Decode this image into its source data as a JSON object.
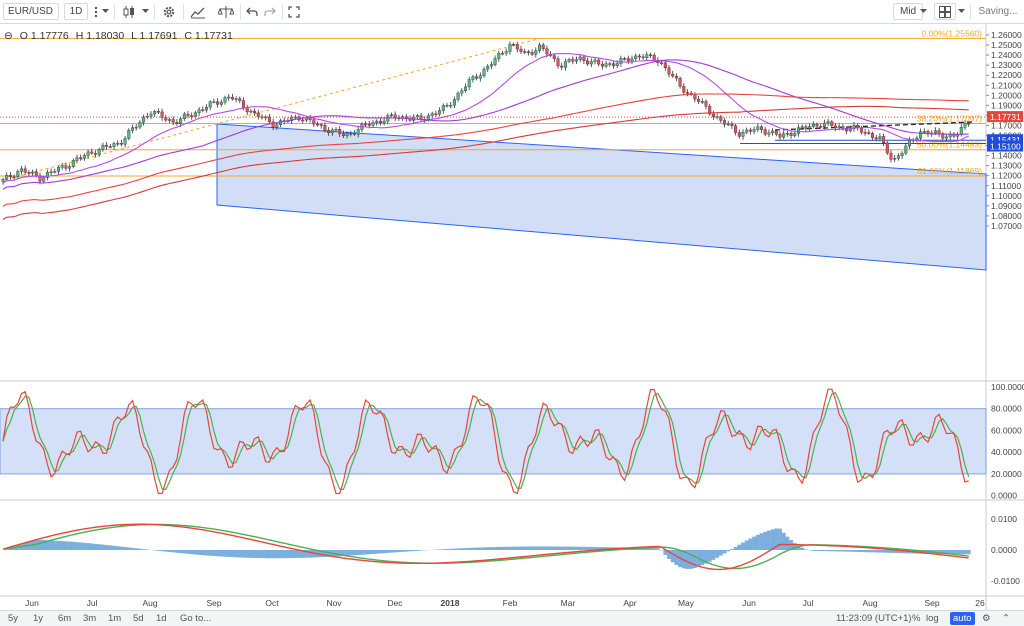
{
  "toolbar": {
    "symbol": "EUR/USD",
    "interval": "1D",
    "price_type": "Mid",
    "status": "Saving..."
  },
  "legend": {
    "open": "O 1.17776",
    "high": "H 1.18030",
    "low": "L 1.17691",
    "close": "C 1.17731"
  },
  "price_axis": {
    "ticks": [
      "1.26000",
      "1.25000",
      "1.24000",
      "1.23000",
      "1.22000",
      "1.21000",
      "1.20000",
      "1.19000",
      "1.18000",
      "1.17000",
      "1.16000",
      "1.15000",
      "1.14000",
      "1.13000",
      "1.12000",
      "1.11000",
      "1.10000",
      "1.09000",
      "1.08000",
      "1.07000"
    ],
    "last_price": "1.17731",
    "level_1": "1.15431",
    "level_2": "1.15100"
  },
  "fib_labels": {
    "f0": "0.00%(1.25560)",
    "f382": "38.20%(1.17097)",
    "f50": "50.00%(1.14483)",
    "f618": "61.80%(1.11869)"
  },
  "stoch_axis": [
    "100.0000",
    "80.0000",
    "60.0000",
    "40.0000",
    "20.0000",
    "0.0000"
  ],
  "macd_axis": [
    "0.0100",
    "0.0000",
    "-0.0100"
  ],
  "time_axis": [
    "Jun",
    "Jul",
    "Aug",
    "Sep",
    "Oct",
    "Nov",
    "Dec",
    "2018",
    "Feb",
    "Mar",
    "Apr",
    "May",
    "Jun",
    "Jul",
    "Aug",
    "Sep",
    "26"
  ],
  "bottom": {
    "ranges": [
      "5y",
      "1y",
      "6m",
      "3m",
      "1m",
      "5d",
      "1d",
      "Go to..."
    ],
    "clock": "11:23:09 (UTC+1)",
    "pct": "%",
    "log": "log",
    "auto": "auto"
  },
  "colors": {
    "up": "#53b987",
    "down": "#eb4d5c",
    "channel": "#2962ff",
    "fib": "#f5a623",
    "ma_purple": "#b84ce0",
    "ma_red": "#e8463b"
  }
}
